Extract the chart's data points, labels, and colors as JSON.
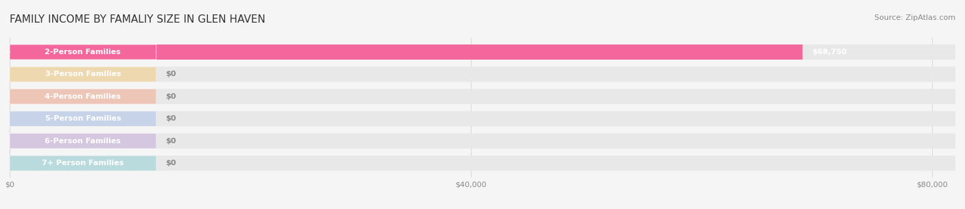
{
  "title": "FAMILY INCOME BY FAMALIY SIZE IN GLEN HAVEN",
  "source": "Source: ZipAtlas.com",
  "categories": [
    "2-Person Families",
    "3-Person Families",
    "4-Person Families",
    "5-Person Families",
    "6-Person Families",
    "7+ Person Families"
  ],
  "values": [
    68750,
    0,
    0,
    0,
    0,
    0
  ],
  "bar_colors": [
    "#f4679d",
    "#f5c97a",
    "#f4a58a",
    "#a8bfe8",
    "#c4a8d8",
    "#8ecfd4"
  ],
  "label_colors": [
    "#f4679d",
    "#f5c97a",
    "#f4a58a",
    "#a8bfe8",
    "#c4a8d8",
    "#8ecfd4"
  ],
  "value_labels": [
    "$68,750",
    "$0",
    "$0",
    "$0",
    "$0",
    "$0"
  ],
  "xlim": [
    0,
    82000
  ],
  "xticks": [
    0,
    40000,
    80000
  ],
  "xticklabels": [
    "$0",
    "$40,000",
    "$80,000"
  ],
  "bg_color": "#f5f5f5",
  "bar_bg_color": "#e8e8e8",
  "title_fontsize": 11,
  "source_fontsize": 8,
  "label_fontsize": 8,
  "value_fontsize": 8
}
